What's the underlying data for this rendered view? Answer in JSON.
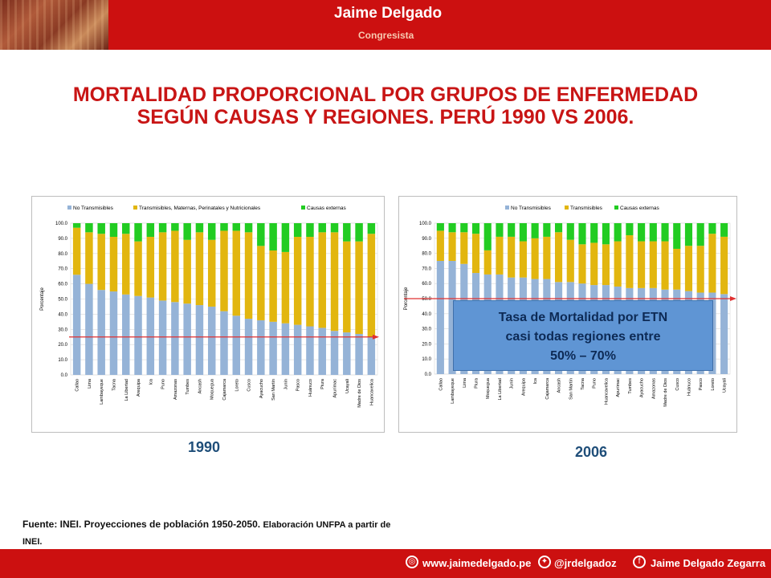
{
  "header": {
    "name": "Jaime Delgado",
    "subtitle": "Congresista"
  },
  "title_line1": "MORTALIDAD PROPORCIONAL POR GRUPOS DE ENFERMEDAD",
  "title_line2": "SEGÚN CAUSAS Y REGIONES. PERÚ 1990 VS 2006.",
  "colors": {
    "series1": "#95b3d7",
    "series2": "#e2b60f",
    "series3": "#22cc22",
    "reference": "#e03030"
  },
  "chart_data": [
    {
      "type": "bar",
      "stacked": true,
      "year_label": "1990",
      "legend_position": "top",
      "ylabel": "Porcentaje",
      "ylim": [
        0,
        100
      ],
      "yticks": [
        "0.0",
        "10.0",
        "20.0",
        "30.0",
        "40.0",
        "50.0",
        "60.0",
        "70.0",
        "80.0",
        "90.0",
        "100.0"
      ],
      "reference_value": 25,
      "categories": [
        "Callao",
        "Lima",
        "Lambayeque",
        "Tacna",
        "La Libertad",
        "Arequipa",
        "Ica",
        "Puno",
        "Amazonas",
        "Tumbes",
        "Ancash",
        "Moquegua",
        "Cajamarca",
        "Loreto",
        "Cusco",
        "Ayacucho",
        "San Martín",
        "Junín",
        "Pasco",
        "Huánuco",
        "Piura",
        "Apurímac",
        "Ucayali",
        "Madre de Dios",
        "Huancavelica"
      ],
      "series": [
        {
          "name": "No Transmisibles",
          "values": [
            66,
            60,
            56,
            55,
            53,
            52,
            51,
            49,
            48,
            47,
            46,
            45,
            42,
            39,
            37,
            36,
            35,
            34,
            33,
            32,
            31,
            29,
            28,
            27,
            25
          ]
        },
        {
          "name": "Transmisibles, Maternas, Perinatales y Nutricionales",
          "values": [
            31,
            34,
            37,
            36,
            40,
            36,
            40,
            45,
            47,
            42,
            48,
            44,
            53,
            56,
            57,
            49,
            47,
            47,
            58,
            59,
            63,
            65,
            60,
            61,
            68
          ]
        },
        {
          "name": "Causas externas",
          "values": [
            3,
            6,
            7,
            9,
            7,
            12,
            9,
            6,
            5,
            11,
            6,
            11,
            5,
            5,
            6,
            15,
            18,
            19,
            9,
            9,
            6,
            6,
            12,
            12,
            7
          ]
        }
      ]
    },
    {
      "type": "bar",
      "stacked": true,
      "year_label": "2006",
      "legend_position": "top",
      "ylabel": "Porcentaje",
      "ylim": [
        0,
        100
      ],
      "yticks": [
        "0.0",
        "10.0",
        "20.0",
        "30.0",
        "40.0",
        "50.0",
        "60.0",
        "70.0",
        "80.0",
        "90.0",
        "100.0"
      ],
      "reference_value": 50,
      "categories": [
        "Callao",
        "Lambayeque",
        "Lima",
        "Piura",
        "Moquegua",
        "La Libertad",
        "Junín",
        "Arequipa",
        "Ica",
        "Cajamarca",
        "Ancash",
        "San Martín",
        "Tacna",
        "Puno",
        "Huancavelica",
        "Apurímac",
        "Tumbes",
        "Ayacucho",
        "Amazonas",
        "Madre de Dios",
        "Cusco",
        "Huánuco",
        "Pasco",
        "Loreto",
        "Ucayali"
      ],
      "series": [
        {
          "name": "No Transmisibles",
          "values": [
            75,
            75,
            73,
            67,
            66,
            66,
            64,
            64,
            63,
            63,
            61,
            61,
            60,
            59,
            59,
            58,
            57,
            57,
            57,
            56,
            56,
            55,
            54,
            54,
            53
          ]
        },
        {
          "name": "Transmisibles",
          "values": [
            20,
            19,
            21,
            26,
            16,
            25,
            27,
            24,
            27,
            28,
            33,
            28,
            26,
            28,
            27,
            30,
            35,
            31,
            31,
            32,
            27,
            30,
            31,
            39,
            38
          ]
        },
        {
          "name": "Causas externas",
          "values": [
            5,
            6,
            6,
            7,
            18,
            9,
            9,
            12,
            10,
            9,
            6,
            11,
            14,
            13,
            14,
            12,
            8,
            12,
            12,
            12,
            17,
            15,
            15,
            7,
            9
          ]
        }
      ]
    }
  ],
  "callout": {
    "line1": "Tasa de Mortalidad por ETN",
    "line2": "casi todas regiones entre",
    "line3": "50% – 70%"
  },
  "source": {
    "main": "Fuente: INEI. Proyecciones de población 1950-2050.",
    "small": "Elaboración UNFPA a partir de",
    "line2": "INEI."
  },
  "footer": {
    "website": "www.jaimedelgado.pe",
    "twitter": "@jrdelgadoz",
    "facebook": "Jaime Delgado Zegarra"
  }
}
